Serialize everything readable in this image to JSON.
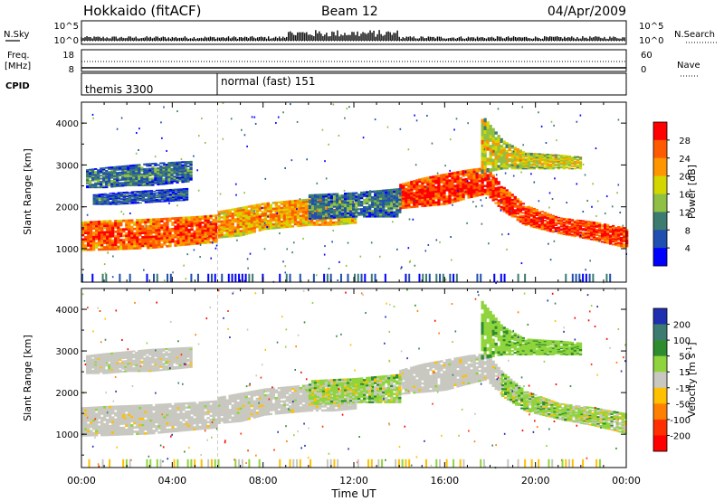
{
  "header": {
    "station": "Hokkaido (fitACF)",
    "beam": "Beam 12",
    "date": "04/Apr/2009"
  },
  "noise_panel": {
    "left_label": "N.Sky",
    "left_top": "10^5",
    "left_bottom": "10^0",
    "right_top": "10^5",
    "right_bottom": "10^0",
    "right_label": "N.Search"
  },
  "freq_panel": {
    "left_label_line1": "Freq.",
    "left_label_line2": "[MHz]",
    "left_top": "18",
    "left_bottom": "8",
    "right_top": "60",
    "right_bottom": "0",
    "right_label": "Nave"
  },
  "cpid_panel": {
    "label": "CPID",
    "modes": [
      {
        "name": "themis 3300",
        "start_hour": 0
      },
      {
        "name": "normal (fast) 151",
        "start_hour": 6
      }
    ]
  },
  "chart_data": [
    {
      "type": "heatmap",
      "quantity": "power",
      "ylabel": "Slant Range [km]",
      "xlabel": "Time UT",
      "xlim_hours": [
        0,
        24
      ],
      "ylim_km": [
        200,
        4500
      ],
      "y_ticks": [
        "1000",
        "2000",
        "3000",
        "4000"
      ],
      "x_ticks": [
        "00:00",
        "04:00",
        "08:00",
        "12:00",
        "16:00",
        "20:00",
        "00:00"
      ],
      "colorbar_label": "Power [dB]",
      "colorbar_ticks": [
        "4",
        "8",
        "12",
        "16",
        "20",
        "24",
        "28"
      ],
      "colorbar_colors": [
        "#0000ff",
        "#1f4fb0",
        "#3d7a70",
        "#8fc043",
        "#d4d600",
        "#ff9600",
        "#ff5a00",
        "#ff0000"
      ],
      "bands": [
        {
          "t": [
            0,
            1,
            2,
            3,
            4,
            5,
            6
          ],
          "lo": [
            950,
            960,
            980,
            1000,
            1050,
            1100,
            1150
          ],
          "hi": [
            1650,
            1680,
            1700,
            1720,
            1750,
            1780,
            1820
          ],
          "level": 26
        },
        {
          "t": [
            6,
            7,
            8,
            9,
            10,
            11,
            12
          ],
          "lo": [
            1250,
            1300,
            1450,
            1500,
            1550,
            1550,
            1600
          ],
          "hi": [
            1900,
            2000,
            2100,
            2150,
            2200,
            2250,
            2300
          ],
          "level": 22
        },
        {
          "t": [
            14,
            15,
            16,
            17,
            17.8,
            18.5,
            19.5,
            21,
            22.5,
            24
          ],
          "lo": [
            1950,
            2000,
            2050,
            2200,
            2300,
            1900,
            1550,
            1350,
            1200,
            1000
          ],
          "hi": [
            2550,
            2700,
            2800,
            2900,
            2950,
            2500,
            2050,
            1750,
            1650,
            1500
          ],
          "level": 28
        },
        {
          "t": [
            0.2,
            1,
            2,
            3,
            4.8
          ],
          "lo": [
            2450,
            2450,
            2500,
            2500,
            2600
          ],
          "hi": [
            2900,
            2950,
            3000,
            3050,
            3100
          ],
          "level": 10
        },
        {
          "t": [
            0.5,
            1.5,
            3,
            4.6
          ],
          "lo": [
            2050,
            2050,
            2100,
            2150
          ],
          "hi": [
            2300,
            2350,
            2400,
            2450
          ],
          "level": 8
        },
        {
          "t": [
            10,
            12,
            14
          ],
          "lo": [
            1700,
            1750,
            1750
          ],
          "hi": [
            2300,
            2350,
            2450
          ],
          "level": 10
        },
        {
          "t": [
            17.6,
            18.5,
            19.5,
            21,
            22
          ],
          "lo": [
            2800,
            2900,
            2900,
            2900,
            2900
          ],
          "hi": [
            4200,
            3600,
            3300,
            3250,
            3200
          ],
          "level": 18
        }
      ]
    },
    {
      "type": "heatmap",
      "quantity": "velocity",
      "ylabel": "Slant Range [km]",
      "xlabel": "Time UT",
      "xlim_hours": [
        0,
        24
      ],
      "ylim_km": [
        200,
        4500
      ],
      "y_ticks": [
        "1000",
        "2000",
        "3000",
        "4000"
      ],
      "x_ticks": [
        "00:00",
        "04:00",
        "08:00",
        "12:00",
        "16:00",
        "20:00",
        "00:00"
      ],
      "colorbar_label": "Velocity [m s^-1]",
      "colorbar_ticks": [
        "200",
        "100",
        "50",
        "15",
        "-15",
        "-50",
        "-100",
        "-200"
      ],
      "colorbar_colors": [
        "#1f2fb0",
        "#3d7a70",
        "#2e8b2e",
        "#8fd43c",
        "#c8c8c0",
        "#ffc000",
        "#ff8000",
        "#ff3000",
        "#ff0000"
      ],
      "bands": [
        {
          "t": [
            0,
            1,
            2,
            3,
            4,
            5,
            6
          ],
          "lo": [
            950,
            960,
            980,
            1000,
            1050,
            1100,
            1150
          ],
          "hi": [
            1650,
            1680,
            1700,
            1720,
            1750,
            1780,
            1820
          ],
          "level": 0
        },
        {
          "t": [
            6,
            7,
            8,
            9,
            10,
            11,
            12
          ],
          "lo": [
            1250,
            1300,
            1450,
            1500,
            1550,
            1550,
            1600
          ],
          "hi": [
            1900,
            2000,
            2100,
            2150,
            2200,
            2250,
            2300
          ],
          "level": 0
        },
        {
          "t": [
            14,
            15,
            16,
            17,
            17.8,
            18.5
          ],
          "lo": [
            1950,
            2000,
            2050,
            2200,
            2300,
            1900
          ],
          "hi": [
            2550,
            2700,
            2800,
            2900,
            2950,
            2500
          ],
          "level": 0
        },
        {
          "t": [
            18.5,
            19.5,
            21,
            22.5,
            24
          ],
          "lo": [
            1900,
            1550,
            1350,
            1200,
            1000
          ],
          "hi": [
            2500,
            2050,
            1750,
            1650,
            1500
          ],
          "level": 30
        },
        {
          "t": [
            0.2,
            1,
            2,
            3,
            4.8
          ],
          "lo": [
            2450,
            2450,
            2500,
            2500,
            2600
          ],
          "hi": [
            2900,
            2950,
            3000,
            3050,
            3100
          ],
          "level": 0
        },
        {
          "t": [
            10,
            12,
            14
          ],
          "lo": [
            1700,
            1750,
            1750
          ],
          "hi": [
            2300,
            2350,
            2450
          ],
          "level": 25
        },
        {
          "t": [
            17.6,
            18.5,
            19.5,
            21,
            22
          ],
          "lo": [
            2800,
            2900,
            2900,
            2900,
            2900
          ],
          "hi": [
            4200,
            3600,
            3300,
            3250,
            3200
          ],
          "level": 35
        }
      ]
    }
  ]
}
